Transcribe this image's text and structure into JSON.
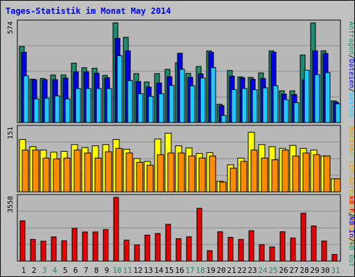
{
  "title": "Tages-Statistik im Monat May 2014",
  "colors": {
    "background": "#c0c0c0",
    "panel_bg": "#b8b8b8",
    "grid": "#888888",
    "title": "#0000ff",
    "weekday": "#000000",
    "weekend": "#1e8a5a",
    "anfragen": "#1e8a6e",
    "dateien": "#0000e0",
    "seiten": "#22c8ff",
    "rechner": "#ffff00",
    "besuche": "#ff8c00",
    "kb_in": "#0000e0",
    "kb_out": "#1e8a6e",
    "kb_f": "#e60000"
  },
  "right_labels": {
    "top": [
      {
        "text": "Anfragen",
        "color": "#1e8a6e"
      },
      {
        "text": "/",
        "color": "#000000"
      },
      {
        "text": "Dateien",
        "color": "#0000e0"
      },
      {
        "text": "/",
        "color": "#000000"
      },
      {
        "text": "Seiten",
        "color": "#22c8ff"
      }
    ],
    "middle": [
      {
        "text": "Rechner (IP-Adressen)",
        "color": "#d8a000"
      },
      {
        "text": "/",
        "color": "#000000"
      },
      {
        "text": "Besuche",
        "color": "#ff8c00"
      }
    ],
    "bottom": [
      {
        "text": "kB F",
        "color": "#e60000"
      },
      {
        "text": "/",
        "color": "#000000"
      },
      {
        "text": "kB In",
        "color": "#0000e0"
      },
      {
        "text": "/",
        "color": "#000000"
      },
      {
        "text": "kB Out",
        "color": "#1e8a6e"
      }
    ]
  },
  "chart_data": [
    {
      "type": "bar",
      "ymax_label": "574",
      "ylim": [
        0,
        574
      ],
      "series": [
        {
          "name": "Anfragen",
          "values": [
            438,
            250,
            254,
            274,
            274,
            342,
            316,
            313,
            272,
            574,
            491,
            282,
            234,
            282,
            307,
            345,
            283,
            323,
            413,
            106,
            300,
            263,
            260,
            286,
            413,
            183,
            183,
            389,
            574,
            413,
            125
          ]
        },
        {
          "name": "Dateien",
          "values": [
            405,
            247,
            247,
            247,
            256,
            292,
            292,
            284,
            258,
            485,
            413,
            236,
            205,
            228,
            264,
            399,
            260,
            281,
            405,
            98,
            267,
            258,
            250,
            254,
            405,
            164,
            161,
            246,
            413,
            398,
            118
          ]
        },
        {
          "name": "Seiten",
          "values": [
            269,
            136,
            140,
            154,
            136,
            196,
            196,
            196,
            196,
            385,
            242,
            166,
            151,
            166,
            214,
            307,
            212,
            257,
            316,
            41,
            190,
            196,
            189,
            200,
            212,
            132,
            115,
            301,
            276,
            287,
            108
          ]
        }
      ]
    },
    {
      "type": "bar",
      "ymax_label": "151",
      "ylim": [
        0,
        151
      ],
      "series": [
        {
          "name": "Rechner (IP-Adressen)",
          "values": [
            124,
            107,
            99,
            94,
            96,
            112,
            105,
            109,
            112,
            124,
            101,
            79,
            72,
            125,
            139,
            109,
            104,
            91,
            93,
            25,
            64,
            80,
            141,
            112,
            107,
            103,
            110,
            103,
            99,
            85,
            31
          ]
        },
        {
          "name": "Besuche",
          "values": [
            99,
            99,
            80,
            78,
            80,
            99,
            92,
            80,
            95,
            103,
            92,
            70,
            63,
            88,
            92,
            92,
            85,
            80,
            85,
            23,
            56,
            72,
            99,
            80,
            76,
            99,
            85,
            92,
            88,
            85,
            31
          ]
        }
      ]
    },
    {
      "type": "bar",
      "ymax_label": "3558",
      "ylim": [
        0,
        3558
      ],
      "series": [
        {
          "name": "kB F",
          "values": [
            2249,
            1208,
            1114,
            1353,
            1132,
            1827,
            1627,
            1627,
            1763,
            3558,
            1170,
            899,
            1452,
            1541,
            2052,
            1252,
            1359,
            2948,
            578,
            1637,
            1325,
            1208,
            1698,
            920,
            793,
            1637,
            1288,
            2677,
            1964,
            1120,
            372
          ]
        }
      ]
    }
  ],
  "days": [
    {
      "label": "1",
      "weekend": false
    },
    {
      "label": "2",
      "weekend": false
    },
    {
      "label": "3",
      "weekend": true
    },
    {
      "label": "4",
      "weekend": true
    },
    {
      "label": "5",
      "weekend": false
    },
    {
      "label": "6",
      "weekend": false
    },
    {
      "label": "7",
      "weekend": false
    },
    {
      "label": "8",
      "weekend": false
    },
    {
      "label": "9",
      "weekend": false
    },
    {
      "label": "10",
      "weekend": true
    },
    {
      "label": "11",
      "weekend": true
    },
    {
      "label": "12",
      "weekend": false
    },
    {
      "label": "13",
      "weekend": false
    },
    {
      "label": "14",
      "weekend": false
    },
    {
      "label": "15",
      "weekend": false
    },
    {
      "label": "16",
      "weekend": false
    },
    {
      "label": "17",
      "weekend": true
    },
    {
      "label": "18",
      "weekend": true
    },
    {
      "label": "19",
      "weekend": false
    },
    {
      "label": "20",
      "weekend": false
    },
    {
      "label": "21",
      "weekend": false
    },
    {
      "label": "22",
      "weekend": false
    },
    {
      "label": "23",
      "weekend": false
    },
    {
      "label": "24",
      "weekend": true
    },
    {
      "label": "25",
      "weekend": true
    },
    {
      "label": "26",
      "weekend": false
    },
    {
      "label": "27",
      "weekend": false
    },
    {
      "label": "28",
      "weekend": false
    },
    {
      "label": "29",
      "weekend": false
    },
    {
      "label": "30",
      "weekend": false
    },
    {
      "label": "31",
      "weekend": true
    }
  ]
}
